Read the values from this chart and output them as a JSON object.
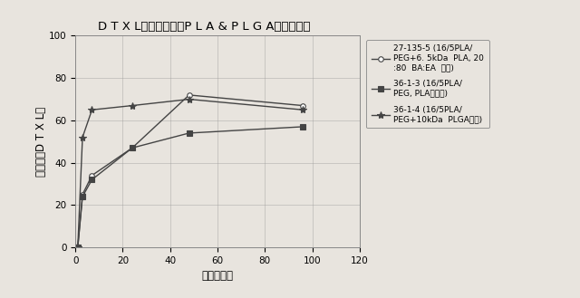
{
  "title": "D T X L放出に対するP L A & P L G A添加の効果",
  "xlabel": "時間（時）",
  "ylabel": "累計放出D T X L％",
  "xlim": [
    0,
    120
  ],
  "ylim": [
    0,
    100
  ],
  "xticks": [
    0,
    20,
    40,
    60,
    80,
    100,
    120
  ],
  "yticks": [
    0,
    20,
    40,
    60,
    80,
    100
  ],
  "series": [
    {
      "label_line1": "27-135-5 (16/5PLA/",
      "label_line2": "PEG+6. 5kDa  PLA, 20",
      "label_line3": ":80  BA:EA  対照)",
      "x": [
        0,
        1,
        3,
        7,
        24,
        48,
        96
      ],
      "y": [
        0,
        0,
        25,
        34,
        47,
        72,
        67
      ],
      "marker": "o",
      "color": "#444444",
      "linewidth": 1.0,
      "markersize": 4
    },
    {
      "label_line1": "36-1-3 (16/5PLA/",
      "label_line2": "PEG, PLA無添加)",
      "label_line3": "",
      "x": [
        0,
        1,
        3,
        7,
        24,
        48,
        96
      ],
      "y": [
        0,
        0,
        24,
        32,
        47,
        54,
        57
      ],
      "marker": "s",
      "color": "#444444",
      "linewidth": 1.0,
      "markersize": 4
    },
    {
      "label_line1": "36-1-4 (16/5PLA/",
      "label_line2": "PEG+10kDa  PLGA添加)",
      "label_line3": "",
      "x": [
        0,
        1,
        3,
        7,
        24,
        48,
        96
      ],
      "y": [
        0,
        0,
        52,
        65,
        67,
        70,
        65
      ],
      "marker": "*",
      "color": "#444444",
      "linewidth": 1.0,
      "markersize": 6
    }
  ],
  "background_color": "#e8e4de",
  "plot_bg_color": "#e8e4de",
  "grid_color": "#999999",
  "legend_fontsize": 6.5,
  "title_fontsize": 9.5,
  "axis_fontsize": 8.5
}
